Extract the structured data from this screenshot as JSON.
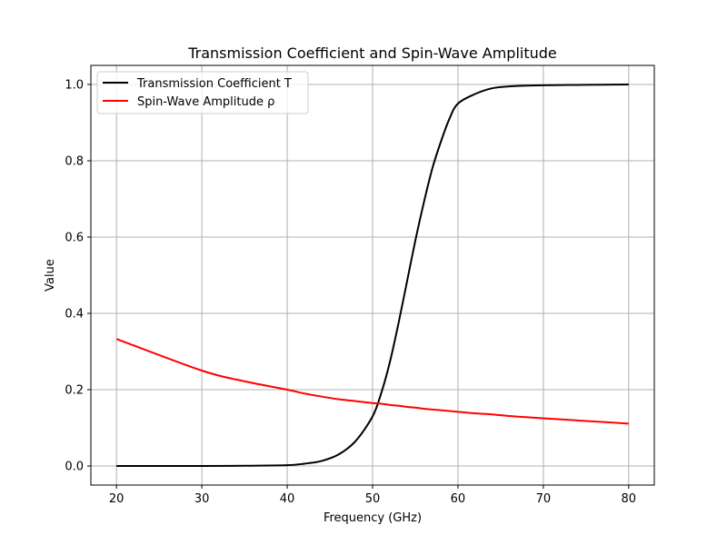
{
  "chart_data": {
    "type": "line",
    "title": "Transmission Coefficient and Spin-Wave Amplitude",
    "xlabel": "Frequency (GHz)",
    "ylabel": "Value",
    "xlim": [
      17,
      83
    ],
    "ylim": [
      -0.05,
      1.05
    ],
    "xticks": [
      20,
      30,
      40,
      50,
      60,
      70,
      80
    ],
    "yticks": [
      0.0,
      0.2,
      0.4,
      0.6,
      0.8,
      1.0
    ],
    "xtick_labels": [
      "20",
      "30",
      "40",
      "50",
      "60",
      "70",
      "80"
    ],
    "ytick_labels": [
      "0.0",
      "0.2",
      "0.4",
      "0.6",
      "0.8",
      "1.0"
    ],
    "grid": true,
    "legend_position": "upper-left",
    "x": [
      20,
      30,
      35,
      40,
      42,
      44,
      46,
      48,
      50,
      51,
      52,
      53,
      54,
      55,
      56,
      57,
      58,
      59,
      60,
      62,
      64,
      66,
      68,
      70,
      75,
      80
    ],
    "series": [
      {
        "name": "Transmission Coefficient T",
        "color": "#000000",
        "values": [
          0.0,
          0.0,
          0.0005,
          0.002,
          0.006,
          0.013,
          0.03,
          0.065,
          0.13,
          0.19,
          0.27,
          0.37,
          0.48,
          0.59,
          0.69,
          0.78,
          0.85,
          0.91,
          0.95,
          0.975,
          0.99,
          0.995,
          0.997,
          0.998,
          0.999,
          1.0
        ]
      },
      {
        "name": "Spin-Wave Amplitude ρ",
        "color": "#ff0000",
        "values": [
          0.333,
          0.25,
          0.222,
          0.2,
          0.19,
          0.182,
          0.175,
          0.17,
          0.165,
          0.163,
          0.16,
          0.158,
          0.155,
          0.153,
          0.15,
          0.148,
          0.146,
          0.144,
          0.142,
          0.138,
          0.135,
          0.131,
          0.128,
          0.125,
          0.118,
          0.111
        ]
      }
    ]
  }
}
